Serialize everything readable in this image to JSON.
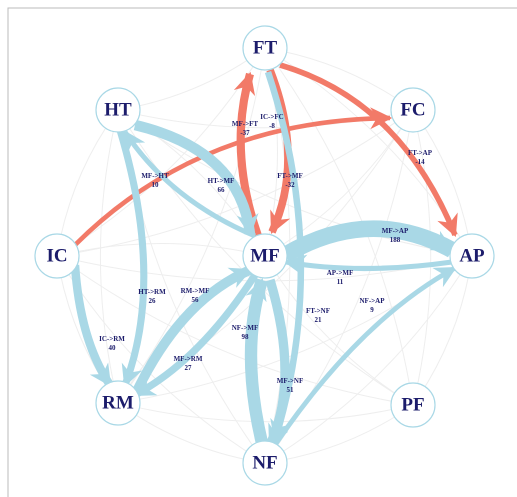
{
  "nodes": [
    {
      "label": "FT"
    },
    {
      "label": "FC"
    },
    {
      "label": "AP"
    },
    {
      "label": "PF"
    },
    {
      "label": "NF"
    },
    {
      "label": "RM"
    },
    {
      "label": "IC"
    },
    {
      "label": "HT"
    },
    {
      "label": "MF"
    }
  ],
  "edges": [
    {
      "label": "MF->FT",
      "value": -37
    },
    {
      "label": "IC->FC",
      "value": -8
    },
    {
      "label": "FT->AP",
      "value": -14
    },
    {
      "label": "FT->MF",
      "value": -32
    },
    {
      "label": "MF->HT",
      "value": 10
    },
    {
      "label": "HT->MF",
      "value": 66
    },
    {
      "label": "MF->AP",
      "value": 188
    },
    {
      "label": "AP->MF",
      "value": 11
    },
    {
      "label": "NF->AP",
      "value": 9
    },
    {
      "label": "FT->NF",
      "value": 21
    },
    {
      "label": "HT->RM",
      "value": 26
    },
    {
      "label": "RM->MF",
      "value": 56
    },
    {
      "label": "NF->MF",
      "value": 98
    },
    {
      "label": "IC->RM",
      "value": 40
    },
    {
      "label": "MF->RM",
      "value": 27
    },
    {
      "label": "MF->NF",
      "value": 51
    }
  ]
}
